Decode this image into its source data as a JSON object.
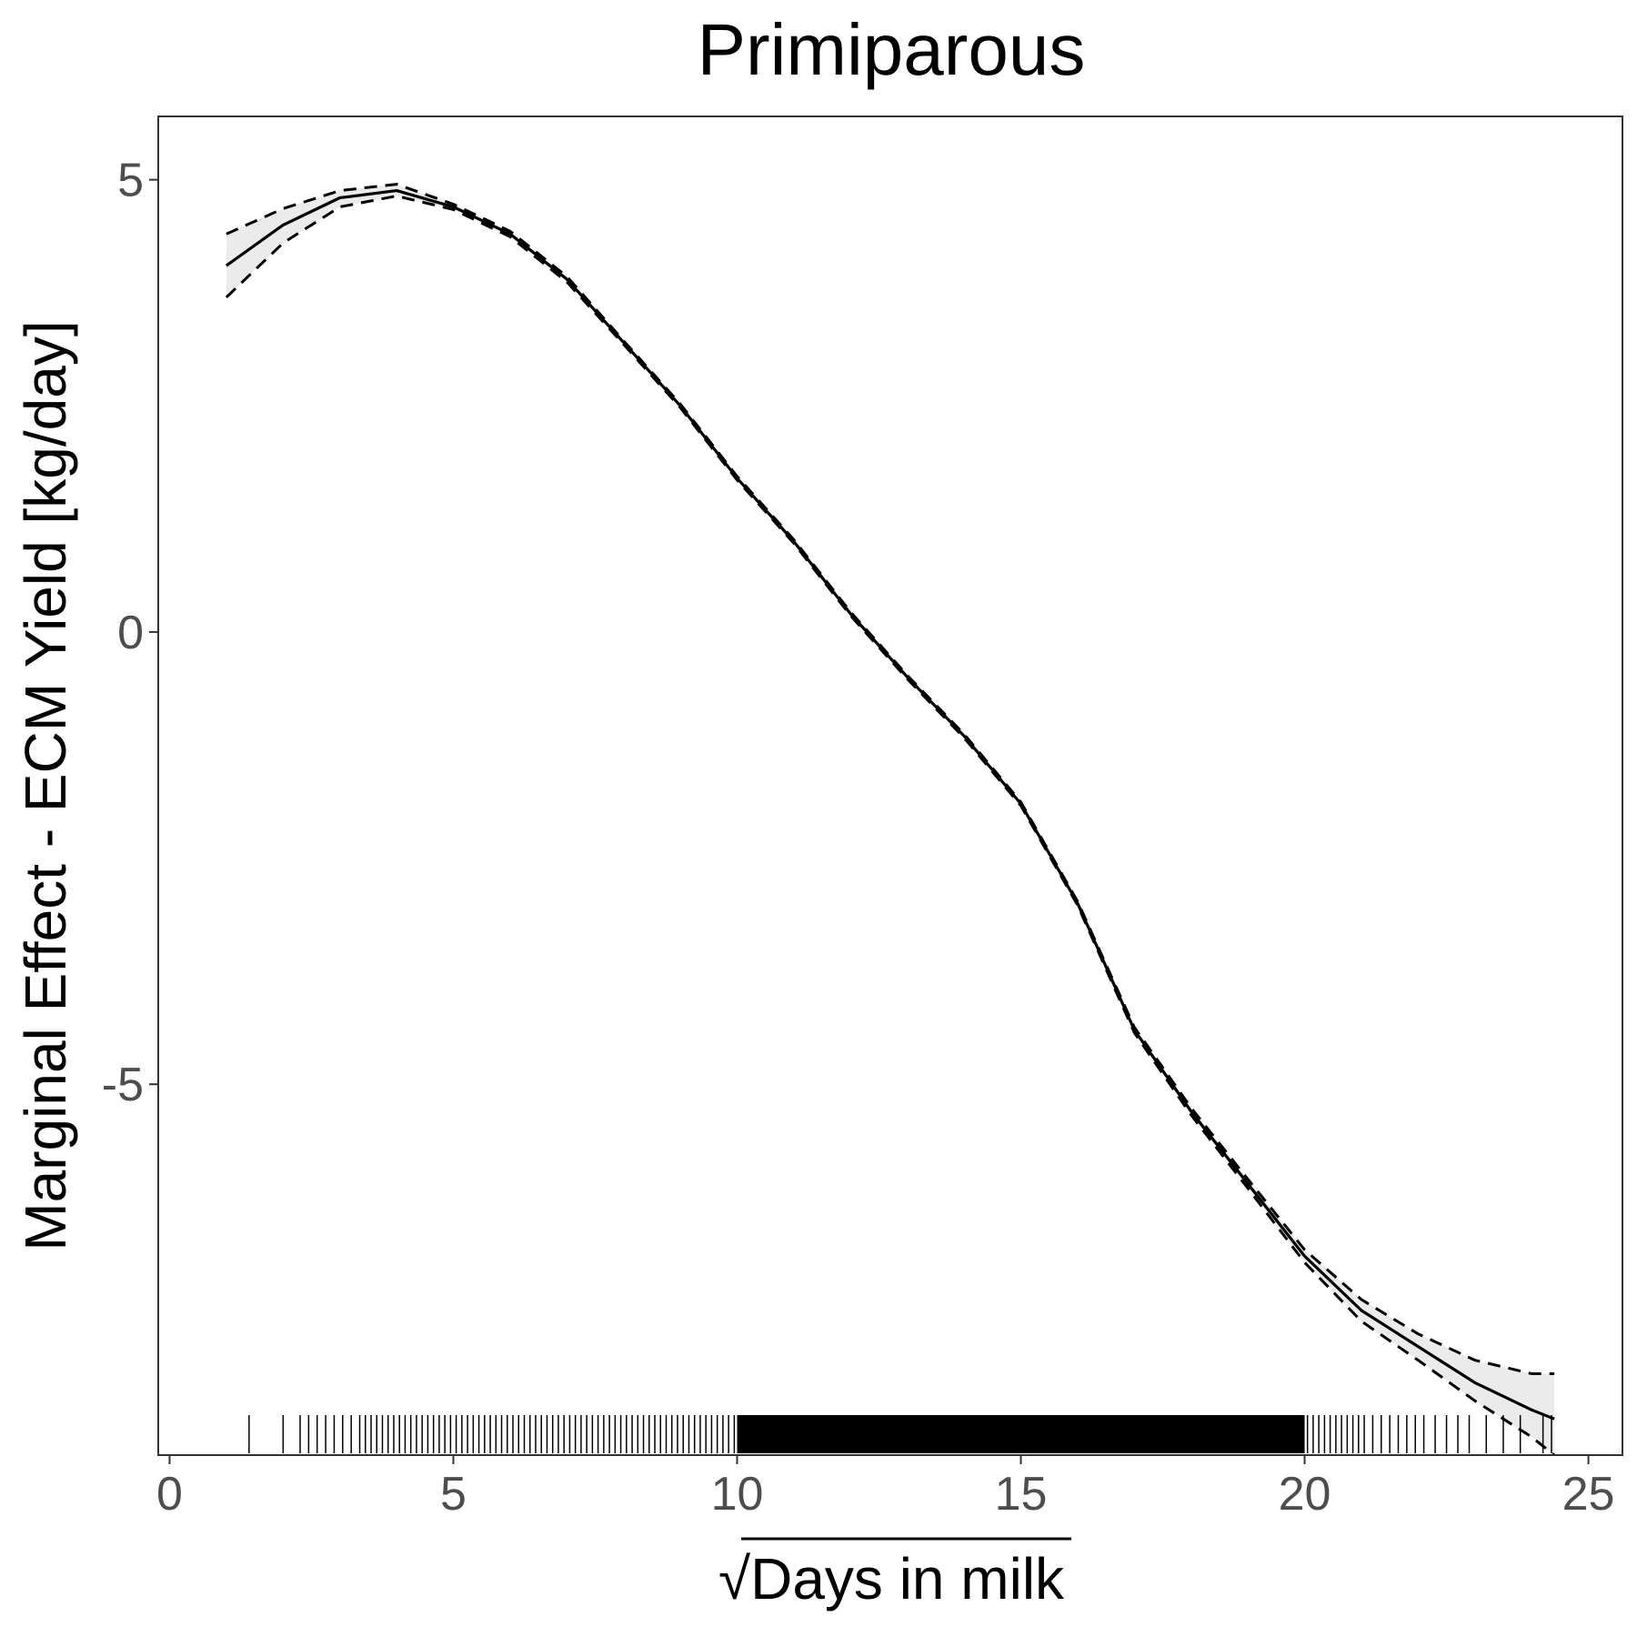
{
  "chart_data": {
    "type": "line",
    "title": "Primiparous",
    "xlabel": "Days in milk",
    "xlabel_prefix": "√",
    "ylabel": "Marginal Effect - ECM Yield [kg/day]",
    "xlim": [
      -0.2,
      25.6
    ],
    "ylim": [
      -9.1,
      5.7
    ],
    "x_ticks": [
      0,
      5,
      10,
      15,
      20,
      25
    ],
    "x_tick_labels": [
      "0",
      "5",
      "10",
      "15",
      "20",
      "25"
    ],
    "y_ticks": [
      5,
      0,
      -5
    ],
    "y_tick_labels": [
      "5",
      "0",
      "-5"
    ],
    "grid": false,
    "legend": "none",
    "colors": {
      "line": "#000000",
      "band": "#ebebeb",
      "tick_label": "#4d4d4d",
      "frame": "#333333"
    },
    "series": [
      {
        "style": "solid",
        "x": [
          1,
          2,
          3,
          4,
          5,
          6,
          7,
          8,
          9,
          10,
          11,
          12,
          13,
          14,
          15,
          16,
          17,
          18,
          19,
          20,
          21,
          22,
          23,
          24,
          24.4
        ],
        "y": [
          4.05,
          4.5,
          4.8,
          4.88,
          4.7,
          4.4,
          3.9,
          3.2,
          2.5,
          1.7,
          1.0,
          0.2,
          -0.5,
          -1.15,
          -1.9,
          -3.0,
          -4.4,
          -5.3,
          -6.1,
          -6.9,
          -7.5,
          -7.9,
          -8.3,
          -8.6,
          -8.7
        ]
      },
      {
        "style": "dashed",
        "x": [
          1,
          2,
          3,
          4,
          5,
          6,
          7,
          8,
          9,
          10,
          11,
          12,
          13,
          14,
          15,
          16,
          17,
          18,
          19,
          20,
          21,
          22,
          23,
          24,
          24.4
        ],
        "y": [
          4.4,
          4.68,
          4.88,
          4.95,
          4.73,
          4.43,
          3.93,
          3.22,
          2.52,
          1.72,
          1.02,
          0.22,
          -0.48,
          -1.13,
          -1.88,
          -2.98,
          -4.37,
          -5.26,
          -6.05,
          -6.83,
          -7.38,
          -7.76,
          -8.05,
          -8.2,
          -8.2
        ]
      },
      {
        "style": "dashed",
        "x": [
          1,
          2,
          3,
          4,
          5,
          6,
          7,
          8,
          9,
          10,
          11,
          12,
          13,
          14,
          15,
          16,
          17,
          18,
          19,
          20,
          21,
          22,
          23,
          24,
          24.4
        ],
        "y": [
          3.7,
          4.3,
          4.7,
          4.82,
          4.67,
          4.37,
          3.87,
          3.18,
          2.48,
          1.68,
          0.98,
          0.18,
          -0.52,
          -1.17,
          -1.92,
          -3.02,
          -4.43,
          -5.34,
          -6.15,
          -6.97,
          -7.62,
          -8.05,
          -8.5,
          -8.9,
          -9.1
        ]
      }
    ],
    "rug_x": [
      1.4,
      2.0,
      2.3,
      2.45,
      2.6,
      2.75,
      2.9,
      3.05,
      3.2,
      3.35,
      3.45,
      3.55,
      3.65,
      3.75,
      3.85,
      3.95,
      4.05,
      4.15,
      4.25,
      4.35,
      4.45,
      4.55,
      4.65,
      4.75,
      4.85,
      4.95,
      5.05,
      5.15,
      5.25,
      5.35,
      5.45,
      5.55,
      5.65,
      5.75,
      5.85,
      5.95,
      6.05,
      6.15,
      6.25,
      6.35,
      6.45,
      6.55,
      6.65,
      6.75,
      6.85,
      6.95,
      7.05,
      7.15,
      7.25,
      7.35,
      7.45,
      7.55,
      7.65,
      7.75,
      7.85,
      7.95,
      8.05,
      8.15,
      8.25,
      8.35,
      8.45,
      8.55,
      8.65,
      8.75,
      8.85,
      8.95,
      9.05,
      9.15,
      9.25,
      9.35,
      9.45,
      9.55,
      9.65,
      9.75,
      9.85,
      9.95,
      20.05,
      20.15,
      20.25,
      20.35,
      20.45,
      20.55,
      20.65,
      20.75,
      20.85,
      20.95,
      21.05,
      21.2,
      21.35,
      21.5,
      21.65,
      21.8,
      21.95,
      22.1,
      22.3,
      22.5,
      22.7,
      22.9,
      23.2,
      23.5,
      23.8,
      24.2,
      24.35
    ],
    "rug_dense_range": [
      10.0,
      20.0
    ]
  }
}
